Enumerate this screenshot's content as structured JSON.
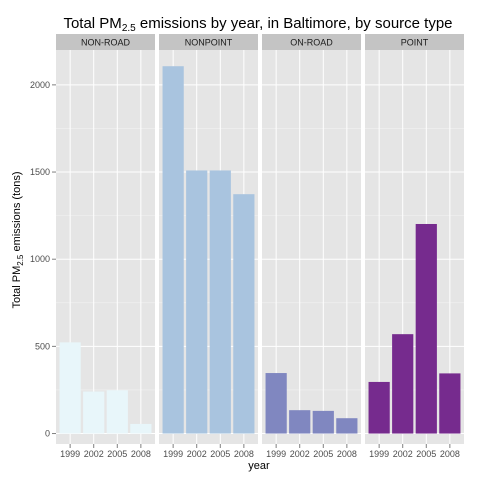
{
  "chart_data": {
    "type": "bar",
    "title": {
      "main": "Total  PM",
      "sub": "2.5",
      "rest": " emissions by year, in Baltimore, by source type"
    },
    "xlabel": "year",
    "ylabel": {
      "main": "Total PM",
      "sub": "2.5",
      "rest": " emissions (tons)"
    },
    "categories": [
      "1999",
      "2002",
      "2005",
      "2008"
    ],
    "yticks": [
      0,
      500,
      1000,
      1500,
      2000
    ],
    "ytick_labels": [
      "0",
      "500",
      "1000",
      "1500",
      "2000"
    ],
    "ylim": [
      -60,
      2200
    ],
    "grid": true,
    "panels": [
      {
        "name": "NON-ROAD",
        "color": "#e8f6fa",
        "values": [
          523,
          241,
          248,
          55
        ]
      },
      {
        "name": "NONPOINT",
        "color": "#a9c4df",
        "values": [
          2107,
          1509,
          1509,
          1373
        ]
      },
      {
        "name": "ON-ROAD",
        "color": "#8087c0",
        "values": [
          347,
          134,
          130,
          88
        ]
      },
      {
        "name": "POINT",
        "color": "#762b8e",
        "values": [
          296,
          570,
          1202,
          345
        ]
      }
    ]
  }
}
